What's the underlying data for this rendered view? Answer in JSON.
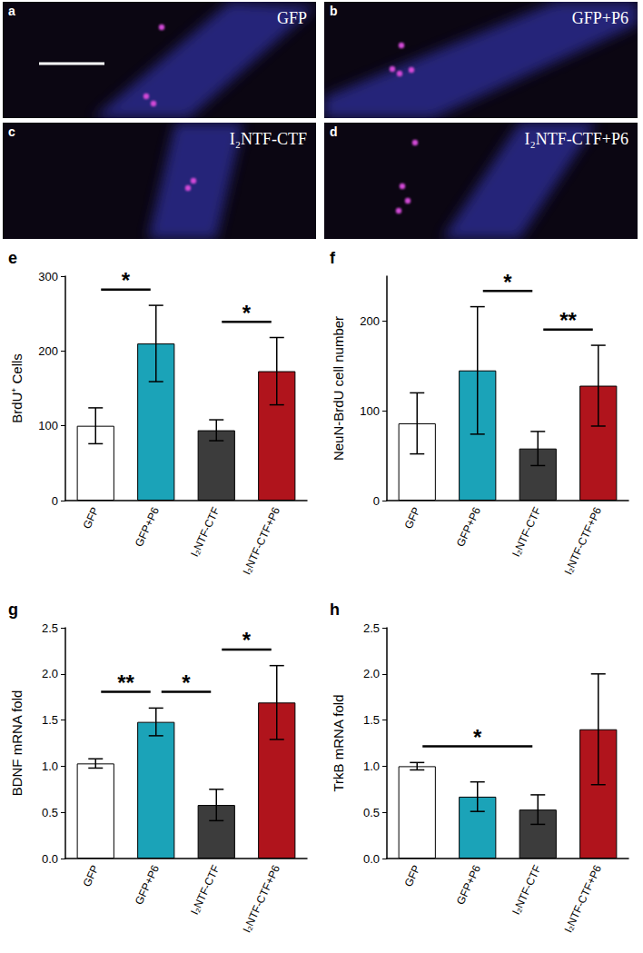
{
  "image_panels": [
    {
      "panel": "a",
      "label": "GFP"
    },
    {
      "panel": "b",
      "label": "GFP+P6"
    },
    {
      "panel": "c",
      "label": "I₂NTF-CTF"
    },
    {
      "panel": "d",
      "label": "I₂NTF-CTF+P6"
    }
  ],
  "chart_data": [
    {
      "type": "bar",
      "panel": "e",
      "y_label": "BrdU⁺ Cells",
      "categories": [
        "GFP",
        "GFP+P6",
        "I₂NTF-CTF",
        "I₂NTF-CTF+P6"
      ],
      "values": [
        100,
        210,
        94,
        173
      ],
      "errors": [
        24,
        51,
        14,
        45
      ],
      "colors": [
        "#ffffff",
        "#1ba3b8",
        "#3c3c3c",
        "#b0141c"
      ],
      "ylim": [
        0,
        300
      ],
      "yticks": [
        0,
        100,
        200,
        300
      ],
      "grid": false,
      "significance": [
        {
          "between": [
            "GFP",
            "GFP+P6"
          ],
          "label": "*"
        },
        {
          "between": [
            "I₂NTF-CTF",
            "I₂NTF-CTF+P6"
          ],
          "label": "*"
        }
      ]
    },
    {
      "type": "bar",
      "panel": "f",
      "y_label": "NeuN-BrdU cell number",
      "categories": [
        "GFP",
        "GFP+P6",
        "I₂NTF-CTF",
        "I₂NTF-CTF+P6"
      ],
      "values": [
        86,
        145,
        58,
        128
      ],
      "errors": [
        34,
        71,
        19,
        45
      ],
      "colors": [
        "#ffffff",
        "#1ba3b8",
        "#3c3c3c",
        "#b0141c"
      ],
      "ylim": [
        0,
        250
      ],
      "yticks": [
        0,
        100,
        200
      ],
      "grid": false,
      "significance": [
        {
          "between": [
            "GFP+P6",
            "I₂NTF-CTF"
          ],
          "label": "*"
        },
        {
          "between": [
            "I₂NTF-CTF",
            "I₂NTF-CTF+P6"
          ],
          "label": "**"
        }
      ]
    },
    {
      "type": "bar",
      "panel": "g",
      "y_label": "BDNF mRNA fold",
      "categories": [
        "GFP",
        "GFP+P6",
        "I₂NTF-CTF",
        "I₂NTF-CTF+P6"
      ],
      "values": [
        1.03,
        1.48,
        0.58,
        1.69
      ],
      "errors": [
        0.05,
        0.15,
        0.17,
        0.4
      ],
      "colors": [
        "#ffffff",
        "#1ba3b8",
        "#3c3c3c",
        "#b0141c"
      ],
      "ylim": [
        0,
        2.5
      ],
      "yticks": [
        {
          "value": 0,
          "label": "0.0"
        },
        0.5,
        {
          "value": 1,
          "label": "1.0"
        },
        1.5,
        {
          "value": 2,
          "label": "2.0"
        },
        2.5
      ],
      "grid": false,
      "significance": [
        {
          "between": [
            "GFP",
            "GFP+P6"
          ],
          "label": "**"
        },
        {
          "between": [
            "GFP+P6",
            "I₂NTF-CTF"
          ],
          "label": "*"
        },
        {
          "between": [
            "I₂NTF-CTF",
            "I₂NTF-CTF+P6"
          ],
          "label": "*"
        }
      ]
    },
    {
      "type": "bar",
      "panel": "h",
      "y_label": "TrkB mRNA fold",
      "categories": [
        "GFP",
        "GFP+P6",
        "I₂NTF-CTF",
        "I₂NTF-CTF+P6"
      ],
      "values": [
        1.0,
        0.67,
        0.53,
        1.4
      ],
      "errors": [
        0.04,
        0.16,
        0.16,
        0.6
      ],
      "colors": [
        "#ffffff",
        "#1ba3b8",
        "#3c3c3c",
        "#b0141c"
      ],
      "ylim": [
        0,
        2.5
      ],
      "yticks": [
        {
          "value": 0,
          "label": "0.0"
        },
        0.5,
        {
          "value": 1,
          "label": "1.0"
        },
        1.5,
        {
          "value": 2,
          "label": "2.0"
        },
        2.5
      ],
      "grid": false,
      "significance": [
        {
          "between": [
            "GFP",
            "I₂NTF-CTF"
          ],
          "label": "*"
        }
      ]
    }
  ]
}
